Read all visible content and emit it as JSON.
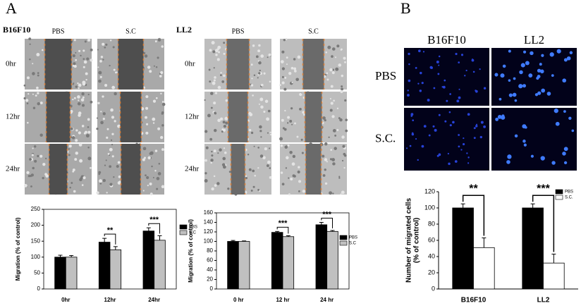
{
  "panel_a": {
    "label": "A",
    "b16f10": {
      "title": "B16F10",
      "columns": [
        "PBS",
        "S.C"
      ],
      "rows": [
        "0hr",
        "12hr",
        "24hr"
      ]
    },
    "ll2": {
      "title": "LL2",
      "columns": [
        "PBS",
        "S.C"
      ],
      "rows": [
        "0hr",
        "12hr",
        "24hr"
      ]
    }
  },
  "panel_b": {
    "label": "B",
    "columns": [
      "B16F10",
      "LL2"
    ],
    "rows": [
      "PBS",
      "S.C."
    ]
  },
  "chart_data": [
    {
      "type": "bar",
      "ylabel": [
        "Migration (% of control)"
      ],
      "categories": [
        "0hr",
        "12hr",
        "24hr"
      ],
      "series": [
        {
          "name": "PBS",
          "color": "#000000",
          "values": [
            100,
            147,
            182
          ],
          "errors": [
            6,
            12,
            10
          ]
        },
        {
          "name": "S.C",
          "color": "#c0c0c0",
          "values": [
            100,
            123,
            153
          ],
          "errors": [
            5,
            10,
            14
          ]
        }
      ],
      "annotations": [
        null,
        "**",
        "***"
      ],
      "ylim": [
        0,
        250
      ],
      "yticks": [
        0,
        50,
        100,
        150,
        200,
        250
      ],
      "frame": true,
      "legend": "outside-right"
    },
    {
      "type": "bar",
      "ylabel": [
        "Migration (% of control)"
      ],
      "categories": [
        "0 hr",
        "12 hr",
        "24 hr"
      ],
      "series": [
        {
          "name": "PBS",
          "color": "#000000",
          "values": [
            100,
            119,
            135
          ],
          "errors": [
            2,
            2,
            5
          ]
        },
        {
          "name": "S.C",
          "color": "#c0c0c0",
          "values": [
            100,
            110,
            121
          ],
          "errors": [
            1,
            2,
            2
          ]
        }
      ],
      "annotations": [
        null,
        "***",
        "***"
      ],
      "ylim": [
        0,
        160
      ],
      "yticks": [
        0,
        20,
        40,
        60,
        80,
        100,
        120,
        140,
        160
      ],
      "frame": true,
      "legend": "outside-right"
    },
    {
      "type": "bar",
      "ylabel": [
        "Number of migrated cells",
        "(% of control)"
      ],
      "categories": [
        "B16F10",
        "LL2"
      ],
      "series": [
        {
          "name": "PBS",
          "color": "#000000",
          "values": [
            100,
            100
          ],
          "errors": [
            5,
            5
          ]
        },
        {
          "name": "S.C.",
          "color": "#ffffff",
          "values": [
            51,
            32
          ],
          "errors": [
            12,
            11
          ]
        }
      ],
      "annotations": [
        "**",
        "***"
      ],
      "ylim": [
        0,
        120
      ],
      "yticks": [
        0,
        20,
        40,
        60,
        80,
        100,
        120
      ],
      "frame": false,
      "legend": "upper-right"
    }
  ]
}
